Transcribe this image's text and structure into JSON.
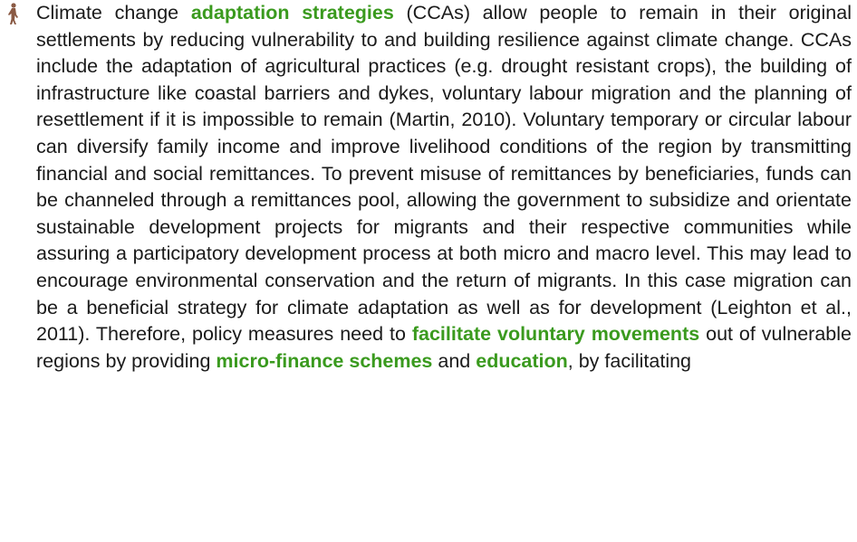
{
  "paragraph": {
    "segments": [
      "Climate change ",
      "adaptation strategies",
      " (CCAs) allow people to remain in their original settlements by reducing vulnerability to and building resilience against climate change. CCAs include the adaptation of agricultural practices (e.g. drought resistant crops), the building of infrastructure like coastal barriers and dykes, voluntary labour migration and the planning of resettlement if it is impossible to remain (Martin, 2010). Voluntary temporary or circular labour can diversify family income and improve livelihood conditions of the region by transmitting financial and social remittances. To prevent misuse of remittances by beneficiaries, funds can be channeled through a remittances pool, allowing the government to subsidize and orientate sustainable development projects for migrants and their respective communities while assuring a participatory development process at both micro and macro level. This may lead to encourage environmental conservation and the return of migrants. In this case migration can be a beneficial strategy for climate adaptation as well as for development (Leighton et al., 2011). Therefore, policy measures need to ",
      "facilitate voluntary movements",
      " out of vulnerable regions by providing ",
      "micro-finance schemes",
      " and ",
      "education",
      ", by facilitating"
    ]
  }
}
